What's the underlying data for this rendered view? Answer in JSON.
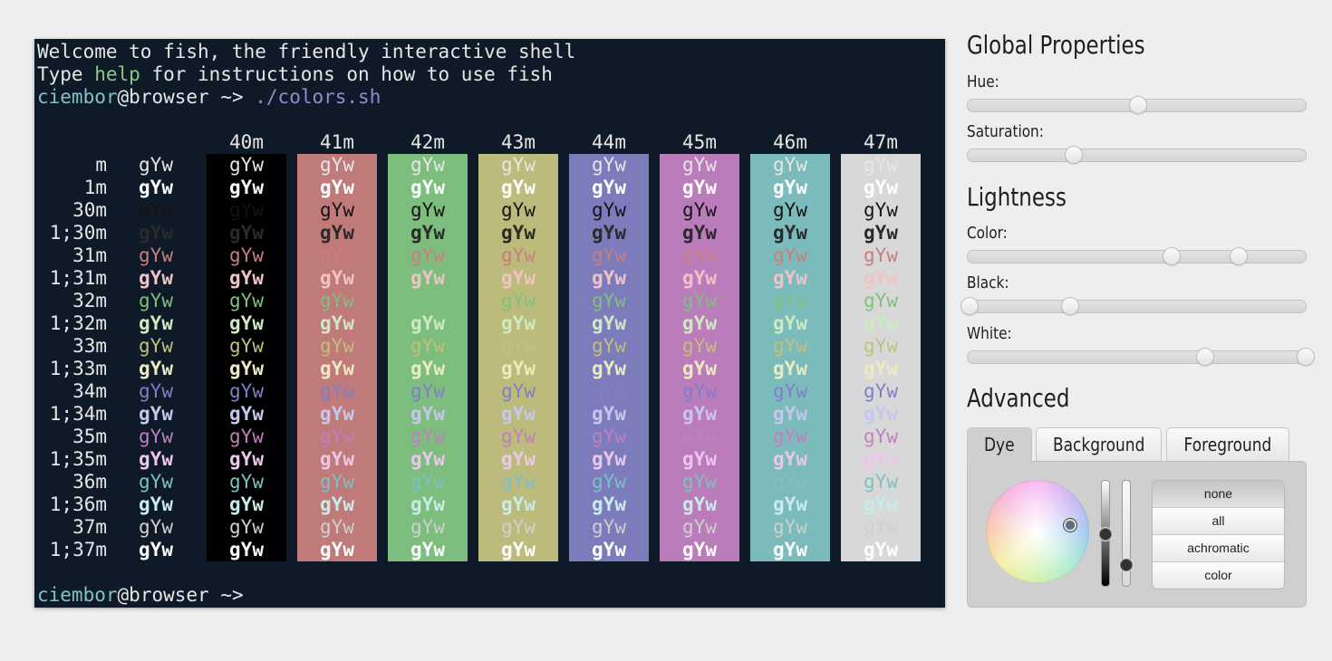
{
  "terminal": {
    "welcome_line": "Welcome to fish, the friendly interactive shell",
    "type_word": "Type ",
    "help_word": "help",
    "rest_line": " for instructions on how to use fish",
    "prompt_user": "ciembor",
    "prompt_at": "@",
    "prompt_host": "browser",
    "prompt_dir": " ~> ",
    "command": "./colors.sh",
    "final_prompt_user": "ciembor",
    "final_prompt_at": "@",
    "final_prompt_host": "browser",
    "final_prompt_dir": " ~>"
  },
  "color_table": {
    "sample_text": "gYw",
    "bg_headers": [
      "40m",
      "41m",
      "42m",
      "43m",
      "44m",
      "45m",
      "46m",
      "47m"
    ],
    "bg_colors": [
      "#000000",
      "#c07a7a",
      "#7dbd7d",
      "#bdbb7b",
      "#7c7cbc",
      "#bb7cbb",
      "#7cbbbb",
      "#d8d8d8"
    ],
    "rows": [
      {
        "label": "m",
        "fg": "#e6e6e6",
        "bold": false
      },
      {
        "label": "1m",
        "fg": "#ffffff",
        "bold": true
      },
      {
        "label": "30m",
        "fg": "#141414",
        "bold": false
      },
      {
        "label": "1;30m",
        "fg": "#2a2a2a",
        "bold": true
      },
      {
        "label": "31m",
        "fg": "#c87e7e",
        "bold": false
      },
      {
        "label": "1;31m",
        "fg": "#f0c4c4",
        "bold": true
      },
      {
        "label": "32m",
        "fg": "#7fc07f",
        "bold": false
      },
      {
        "label": "1;32m",
        "fg": "#cdeac0",
        "bold": true
      },
      {
        "label": "33m",
        "fg": "#c2c07c",
        "bold": false
      },
      {
        "label": "1;33m",
        "fg": "#ecebc0",
        "bold": true
      },
      {
        "label": "34m",
        "fg": "#7f7fc6",
        "bold": false
      },
      {
        "label": "1;34m",
        "fg": "#c6c6ee",
        "bold": true
      },
      {
        "label": "35m",
        "fg": "#c07fc0",
        "bold": false
      },
      {
        "label": "1;35m",
        "fg": "#ecc6ec",
        "bold": true
      },
      {
        "label": "36m",
        "fg": "#7fc0c0",
        "bold": false
      },
      {
        "label": "1;36m",
        "fg": "#c6ecec",
        "bold": true
      },
      {
        "label": "37m",
        "fg": "#d0d0d0",
        "bold": false
      },
      {
        "label": "1;37m",
        "fg": "#ffffff",
        "bold": true
      }
    ]
  },
  "sidebar": {
    "global_title": "Global Properties",
    "hue_label": "Hue:",
    "hue_value": 0.5,
    "saturation_label": "Saturation:",
    "saturation_value": 0.31,
    "lightness_title": "Lightness",
    "color_label": "Color:",
    "color_values": [
      0.6,
      0.8
    ],
    "black_label": "Black:",
    "black_values": [
      0.0,
      0.3
    ],
    "white_label": "White:",
    "white_values": [
      0.7,
      1.0
    ],
    "advanced_title": "Advanced",
    "tabs": [
      "Dye",
      "Background",
      "Foreground"
    ],
    "active_tab": "Dye",
    "dye_options": [
      "none",
      "all",
      "achromatic",
      "color"
    ],
    "selected_option": "none"
  }
}
